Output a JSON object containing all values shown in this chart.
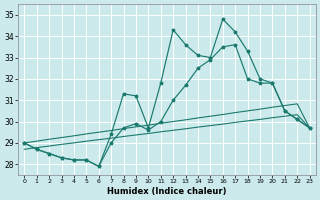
{
  "xlabel": "Humidex (Indice chaleur)",
  "bg_color": "#cce9eb",
  "grid_color": "#ffffff",
  "line_color": "#1a7a6e",
  "xlim": [
    -0.5,
    23.5
  ],
  "ylim": [
    27.5,
    35.5
  ],
  "yticks": [
    28,
    29,
    30,
    31,
    32,
    33,
    34,
    35
  ],
  "xticks": [
    0,
    1,
    2,
    3,
    4,
    5,
    6,
    7,
    8,
    9,
    10,
    11,
    12,
    13,
    14,
    15,
    16,
    17,
    18,
    19,
    20,
    21,
    22,
    23
  ],
  "line1": [
    29.0,
    28.7,
    28.5,
    28.3,
    28.2,
    28.2,
    27.9,
    29.4,
    31.3,
    31.2,
    29.7,
    31.8,
    34.3,
    33.6,
    33.1,
    33.0,
    34.8,
    34.2,
    33.3,
    32.0,
    31.8,
    30.5,
    30.1,
    29.7
  ],
  "line2": [
    29.0,
    28.7,
    28.5,
    28.3,
    28.2,
    28.2,
    27.9,
    29.0,
    29.7,
    29.9,
    29.6,
    30.0,
    31.0,
    31.7,
    32.5,
    32.9,
    33.5,
    33.6,
    32.0,
    31.8,
    31.8,
    30.5,
    30.1,
    29.7
  ],
  "line3": [
    29.0,
    29.08,
    29.17,
    29.25,
    29.33,
    29.42,
    29.5,
    29.58,
    29.67,
    29.75,
    29.83,
    29.92,
    30.0,
    30.08,
    30.17,
    30.25,
    30.33,
    30.42,
    30.5,
    30.58,
    30.67,
    30.75,
    30.83,
    29.7
  ],
  "line4": [
    28.7,
    28.78,
    28.85,
    28.93,
    29.0,
    29.08,
    29.15,
    29.22,
    29.3,
    29.37,
    29.44,
    29.52,
    29.59,
    29.66,
    29.74,
    29.81,
    29.88,
    29.96,
    30.03,
    30.1,
    30.18,
    30.25,
    30.32,
    29.7
  ]
}
